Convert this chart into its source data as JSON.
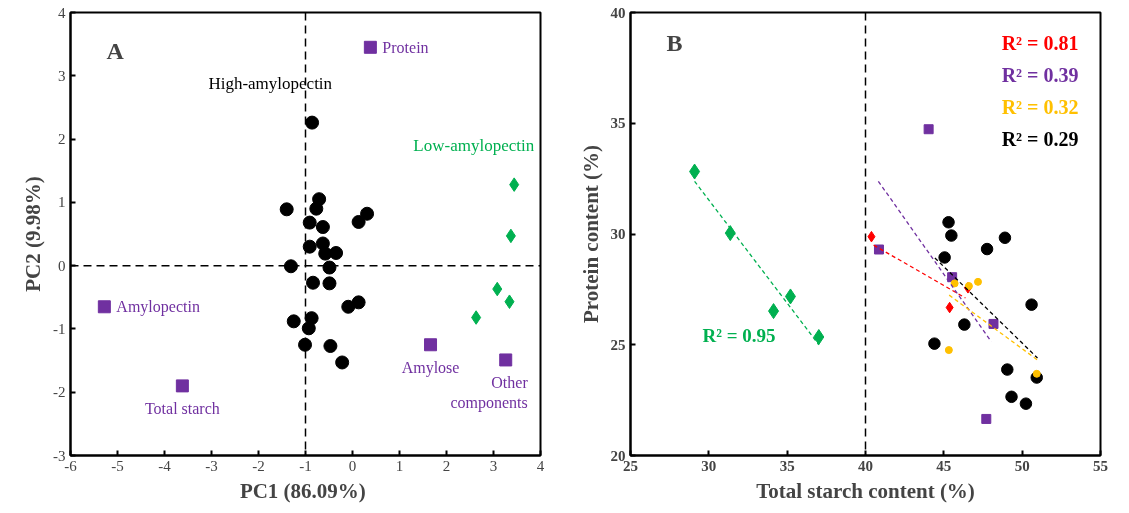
{
  "chart_data": [
    {
      "type": "scatter",
      "title": "A",
      "xlabel": "PC1  (86.09%)",
      "ylabel": "PC2 (9.98%)",
      "xlim": [
        -6,
        4
      ],
      "xticks": [
        -6,
        -5,
        -4,
        -3,
        -2,
        -1,
        0,
        1,
        2,
        3,
        4
      ],
      "ylim": [
        -3,
        4
      ],
      "yticks": [
        -3,
        -2,
        -1,
        0,
        1,
        2,
        3,
        4
      ],
      "grid": false,
      "legend": false,
      "series": [
        {
          "name": "High-amylopectin",
          "color": "#000000",
          "marker": "circle",
          "x": [
            -0.86,
            -1.4,
            -0.71,
            -0.77,
            -0.91,
            -0.63,
            0.13,
            0.31,
            -0.91,
            -0.63,
            -0.58,
            -0.35,
            -1.31,
            -0.49,
            -0.84,
            -0.49,
            -0.09,
            0.13,
            -1.25,
            -0.87,
            -0.93,
            -1.01,
            -0.47,
            -0.22
          ],
          "values": [
            2.26,
            0.89,
            1.05,
            0.9,
            0.68,
            0.61,
            0.69,
            0.82,
            0.3,
            0.35,
            0.19,
            0.2,
            -0.01,
            -0.03,
            -0.27,
            -0.28,
            -0.65,
            -0.58,
            -0.88,
            -0.83,
            -0.99,
            -1.25,
            -1.27,
            -1.53
          ]
        },
        {
          "name": "Low-amylopectin",
          "color": "#00b050",
          "marker": "diamond",
          "x": [
            3.44,
            3.37,
            3.08,
            3.34,
            2.63
          ],
          "values": [
            1.28,
            0.47,
            -0.37,
            -0.57,
            -0.82
          ]
        },
        {
          "name": "Protein",
          "color": "#7030a0",
          "marker": "square",
          "x": [
            0.38
          ],
          "values": [
            3.45
          ]
        },
        {
          "name": "Amylopectin",
          "color": "#7030a0",
          "marker": "square",
          "x": [
            -5.28
          ],
          "values": [
            -0.65
          ]
        },
        {
          "name": "Total starch",
          "color": "#7030a0",
          "marker": "square",
          "x": [
            -3.62
          ],
          "values": [
            -1.9
          ]
        },
        {
          "name": "Amylose",
          "color": "#7030a0",
          "marker": "square",
          "x": [
            1.66
          ],
          "values": [
            -1.25
          ]
        },
        {
          "name": "Other\ncomponents",
          "color": "#7030a0",
          "marker": "square",
          "x": [
            3.26
          ],
          "values": [
            -1.49
          ]
        }
      ],
      "ref_lines": [
        {
          "axis": "x",
          "value": -1,
          "color": "#000000",
          "line_style": "dashed"
        },
        {
          "axis": "y",
          "value": 0,
          "color": "#000000",
          "line_style": "dashed"
        }
      ]
    },
    {
      "type": "scatter",
      "title": "B",
      "xlabel": "Total starch content (%)",
      "ylabel": "Protein content (%)",
      "xlim": [
        25,
        55
      ],
      "xticks": [
        25,
        30,
        35,
        40,
        45,
        50,
        55
      ],
      "ylim": [
        20,
        40
      ],
      "yticks": [
        20,
        25,
        30,
        35,
        40
      ],
      "grid": false,
      "legend": "top right",
      "series": [
        {
          "color": "#00b050",
          "marker": "diamond",
          "x": [
            29.09,
            31.37,
            35.21,
            34.13,
            37.02
          ],
          "values": [
            32.82,
            30.04,
            27.18,
            26.52,
            25.35
          ]
        },
        {
          "color": "#000000",
          "marker": "circle",
          "x": [
            45.3,
            45.48,
            45.05,
            47.76,
            48.9,
            50.6,
            46.31,
            44.4,
            49.05,
            50.93,
            49.32,
            50.24
          ],
          "values": [
            30.53,
            29.93,
            28.94,
            29.32,
            29.83,
            26.81,
            25.91,
            25.05,
            23.88,
            23.52,
            22.65,
            22.34
          ]
        },
        {
          "color": "#7030a0",
          "marker": "square",
          "x": [
            44.03,
            40.86,
            45.53,
            48.17,
            47.71
          ],
          "values": [
            34.73,
            29.3,
            28.05,
            25.94,
            21.65
          ]
        },
        {
          "color": "#ff0000",
          "marker": "diamond",
          "x": [
            40.38,
            45.37,
            46.54
          ],
          "values": [
            29.88,
            26.68,
            27.57
          ]
        },
        {
          "color": "#ffc000",
          "marker": "circle",
          "x": [
            45.32,
            45.69,
            47.18,
            46.6,
            50.93
          ],
          "values": [
            24.76,
            27.77,
            27.84,
            27.65,
            23.69
          ]
        },
        {
          "type": "line",
          "name": "R² = 0.95",
          "color": "#00b050",
          "line_style": "dashed",
          "x": [
            29.09,
            37.02
          ],
          "values": [
            32.38,
            25.0
          ]
        },
        {
          "type": "line",
          "name": "R² = 0.81",
          "color": "#ff0000",
          "line_style": "dashed",
          "x": [
            40.52,
            46.38
          ],
          "values": [
            29.5,
            27.11
          ]
        },
        {
          "type": "line",
          "name": "R² = 0.39",
          "color": "#7030a0",
          "line_style": "dashed",
          "x": [
            40.82,
            48.03
          ],
          "values": [
            32.38,
            25.14
          ]
        },
        {
          "type": "line",
          "name": "R² = 0.32",
          "color": "#ffc000",
          "line_style": "dashed",
          "x": [
            45.34,
            50.98
          ],
          "values": [
            27.24,
            24.31
          ]
        },
        {
          "type": "line",
          "name": "R² = 0.29",
          "color": "#000000",
          "line_style": "dashed",
          "x": [
            44.43,
            50.98
          ],
          "values": [
            28.92,
            24.4
          ]
        }
      ],
      "ref_lines": [
        {
          "axis": "x",
          "value": 40,
          "color": "#000000",
          "line_style": "dashed"
        }
      ]
    }
  ]
}
